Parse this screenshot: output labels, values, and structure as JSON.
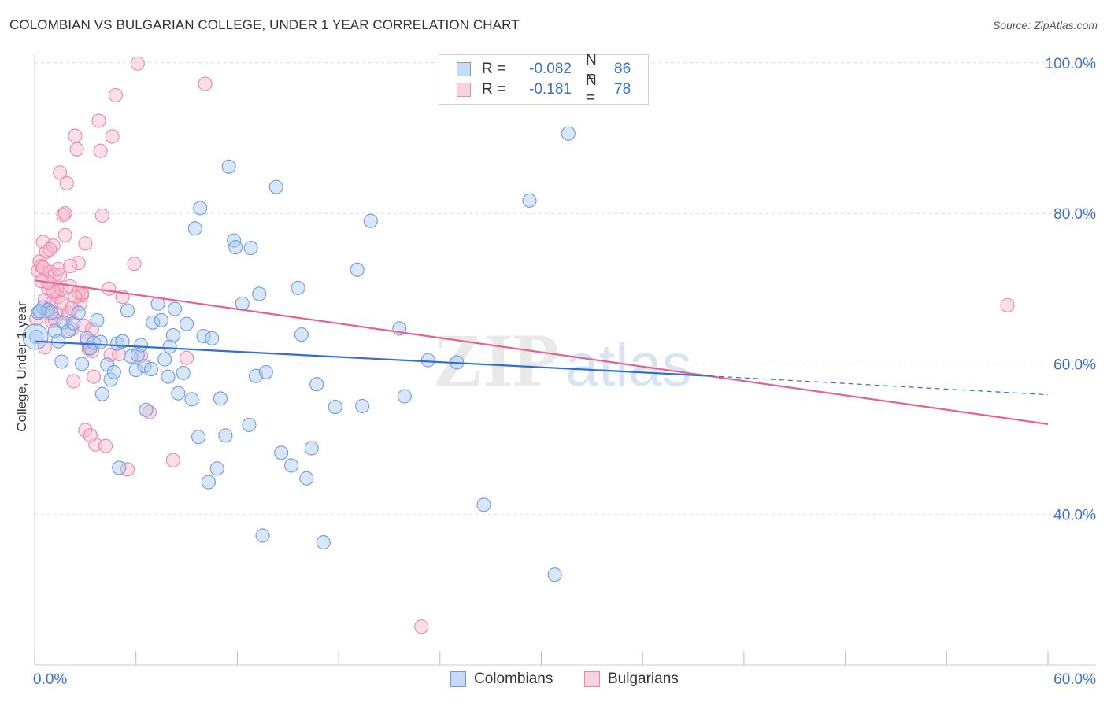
{
  "header": {
    "title": "COLOMBIAN VS BULGARIAN COLLEGE, UNDER 1 YEAR CORRELATION CHART",
    "source": "Source: ZipAtlas.com"
  },
  "legend": {
    "rows": [
      {
        "r_label": "R =",
        "r_value": "-0.082",
        "n_label": "N =",
        "n_value": "86"
      },
      {
        "r_label": "R =",
        "r_value": "-0.181",
        "n_label": "N =",
        "n_value": "78"
      }
    ]
  },
  "watermark": {
    "zip": "ZIP",
    "atlas": "atlas"
  },
  "colors": {
    "colombians_fill": "#a9c7ef",
    "colombians_stroke": "#6f9be0",
    "colombians_line": "#2f6fd0",
    "bulgarians_fill": "#f6b8cb",
    "bulgarians_stroke": "#ec88a8",
    "bulgarians_line": "#e8608f",
    "grid": "#dcdcdc",
    "axis_text": "#3b6fd0"
  },
  "chart_data": {
    "type": "scatter",
    "title": "COLOMBIAN VS BULGARIAN COLLEGE, UNDER 1 YEAR CORRELATION CHART",
    "xlabel": "",
    "ylabel": "College, Under 1 year",
    "xlim": [
      0,
      60
    ],
    "ylim": [
      20,
      100
    ],
    "x_tick_labels": [
      "0.0%",
      "60.0%"
    ],
    "y_ticks": [
      40,
      60,
      80,
      100
    ],
    "y_tick_labels": [
      "40.0%",
      "60.0%",
      "80.0%",
      "100.0%"
    ],
    "grid": true,
    "legend_position": "bottom",
    "series": [
      {
        "name": "Colombians",
        "r": -0.082,
        "n": 86,
        "trend": {
          "x0": 0,
          "y0": 63.0,
          "x1": 40,
          "y1": 58.4,
          "dash_to_x": 60,
          "dash_to_y": 55.9
        },
        "points": [
          [
            0.1,
            63.6
          ],
          [
            0.2,
            66.8
          ],
          [
            0.5,
            67.5
          ],
          [
            0.8,
            67.2
          ],
          [
            1.0,
            66.8
          ],
          [
            1.2,
            64.4
          ],
          [
            1.4,
            63.0
          ],
          [
            1.6,
            60.3
          ],
          [
            1.7,
            65.5
          ],
          [
            2.0,
            64.4
          ],
          [
            2.3,
            65.4
          ],
          [
            2.6,
            66.8
          ],
          [
            2.8,
            60.0
          ],
          [
            3.1,
            63.4
          ],
          [
            3.3,
            62.1
          ],
          [
            3.5,
            62.8
          ],
          [
            3.7,
            65.8
          ],
          [
            3.9,
            62.9
          ],
          [
            4.0,
            56.0
          ],
          [
            4.3,
            59.9
          ],
          [
            4.5,
            57.9
          ],
          [
            4.7,
            58.9
          ],
          [
            4.9,
            62.7
          ],
          [
            5.0,
            46.2
          ],
          [
            5.2,
            63.0
          ],
          [
            5.5,
            67.1
          ],
          [
            5.7,
            61.0
          ],
          [
            6.0,
            59.2
          ],
          [
            6.1,
            61.2
          ],
          [
            6.3,
            62.5
          ],
          [
            6.5,
            59.7
          ],
          [
            6.6,
            53.9
          ],
          [
            6.9,
            59.3
          ],
          [
            7.0,
            65.5
          ],
          [
            7.3,
            68.0
          ],
          [
            7.5,
            65.8
          ],
          [
            7.7,
            60.6
          ],
          [
            7.9,
            58.3
          ],
          [
            8.0,
            62.3
          ],
          [
            8.2,
            63.8
          ],
          [
            8.3,
            67.3
          ],
          [
            8.5,
            56.1
          ],
          [
            8.8,
            58.8
          ],
          [
            9.0,
            65.3
          ],
          [
            9.3,
            55.3
          ],
          [
            9.5,
            78.0
          ],
          [
            9.7,
            50.3
          ],
          [
            9.8,
            80.7
          ],
          [
            10.0,
            63.7
          ],
          [
            10.3,
            44.3
          ],
          [
            10.5,
            63.4
          ],
          [
            10.8,
            46.1
          ],
          [
            11.0,
            55.4
          ],
          [
            11.3,
            50.5
          ],
          [
            11.5,
            86.2
          ],
          [
            11.8,
            76.4
          ],
          [
            11.9,
            75.5
          ],
          [
            12.3,
            68.0
          ],
          [
            12.7,
            51.9
          ],
          [
            12.8,
            75.4
          ],
          [
            13.1,
            58.4
          ],
          [
            13.3,
            69.3
          ],
          [
            13.5,
            37.2
          ],
          [
            13.7,
            58.9
          ],
          [
            14.3,
            83.5
          ],
          [
            14.6,
            48.2
          ],
          [
            15.2,
            46.5
          ],
          [
            15.6,
            70.1
          ],
          [
            15.8,
            63.9
          ],
          [
            16.1,
            44.8
          ],
          [
            16.4,
            48.8
          ],
          [
            16.7,
            57.3
          ],
          [
            17.1,
            36.3
          ],
          [
            17.8,
            54.3
          ],
          [
            19.1,
            72.5
          ],
          [
            19.4,
            54.4
          ],
          [
            19.9,
            79.0
          ],
          [
            21.6,
            64.7
          ],
          [
            21.9,
            55.7
          ],
          [
            23.3,
            60.5
          ],
          [
            25.0,
            60.2
          ],
          [
            26.6,
            41.3
          ],
          [
            29.3,
            81.7
          ],
          [
            30.8,
            32.0
          ],
          [
            31.6,
            90.6
          ],
          [
            0.3,
            67.0
          ]
        ]
      },
      {
        "name": "Bulgarians",
        "r": -0.181,
        "n": 78,
        "trend": {
          "x0": 0,
          "y0": 71.1,
          "x1": 60,
          "y1": 52.0
        },
        "points": [
          [
            0.1,
            66.0
          ],
          [
            0.2,
            72.4
          ],
          [
            0.3,
            73.6
          ],
          [
            0.4,
            73.0
          ],
          [
            0.5,
            76.2
          ],
          [
            0.6,
            68.5
          ],
          [
            0.7,
            74.9
          ],
          [
            0.8,
            70.0
          ],
          [
            0.9,
            72.2
          ],
          [
            1.0,
            65.7
          ],
          [
            1.1,
            75.7
          ],
          [
            1.2,
            71.8
          ],
          [
            1.3,
            69.6
          ],
          [
            1.4,
            68.9
          ],
          [
            1.5,
            85.4
          ],
          [
            1.6,
            69.9
          ],
          [
            1.7,
            79.8
          ],
          [
            1.8,
            77.1
          ],
          [
            1.9,
            84.0
          ],
          [
            2.0,
            66.5
          ],
          [
            2.1,
            70.3
          ],
          [
            2.2,
            64.6
          ],
          [
            2.3,
            57.7
          ],
          [
            2.4,
            90.3
          ],
          [
            2.5,
            88.5
          ],
          [
            2.6,
            73.4
          ],
          [
            2.7,
            68.0
          ],
          [
            2.8,
            69.1
          ],
          [
            2.9,
            65.1
          ],
          [
            3.0,
            76.0
          ],
          [
            3.2,
            62.0
          ],
          [
            3.4,
            61.7
          ],
          [
            3.5,
            58.3
          ],
          [
            3.6,
            49.3
          ],
          [
            3.8,
            92.3
          ],
          [
            3.9,
            88.3
          ],
          [
            4.0,
            79.7
          ],
          [
            4.2,
            49.1
          ],
          [
            4.4,
            70.0
          ],
          [
            4.6,
            90.2
          ],
          [
            4.8,
            95.7
          ],
          [
            5.2,
            68.9
          ],
          [
            5.5,
            46.0
          ],
          [
            5.9,
            73.3
          ],
          [
            6.1,
            99.9
          ],
          [
            6.3,
            61.1
          ],
          [
            6.8,
            53.6
          ],
          [
            8.2,
            47.2
          ],
          [
            9.0,
            60.8
          ],
          [
            10.1,
            97.2
          ],
          [
            1.0,
            68.0
          ],
          [
            0.5,
            72.8
          ],
          [
            1.8,
            80.0
          ],
          [
            3.0,
            51.2
          ],
          [
            3.3,
            50.5
          ],
          [
            0.9,
            75.2
          ],
          [
            2.1,
            73.0
          ],
          [
            1.3,
            66.7
          ],
          [
            0.6,
            62.2
          ],
          [
            1.5,
            71.8
          ],
          [
            2.6,
            69.5
          ],
          [
            3.4,
            64.6
          ],
          [
            1.1,
            69.6
          ],
          [
            2.8,
            69.4
          ],
          [
            0.8,
            70.8
          ],
          [
            4.5,
            61.2
          ],
          [
            5.0,
            61.3
          ],
          [
            22.9,
            25.1
          ],
          [
            57.6,
            67.8
          ],
          [
            2.0,
            66.8
          ],
          [
            1.6,
            68.1
          ],
          [
            0.4,
            71.0
          ],
          [
            3.1,
            63.0
          ],
          [
            1.2,
            65.9
          ],
          [
            2.4,
            68.9
          ],
          [
            0.7,
            67.0
          ],
          [
            1.4,
            72.6
          ],
          [
            2.2,
            67.4
          ]
        ]
      }
    ]
  },
  "bottom_legend": {
    "colombians": "Colombians",
    "bulgarians": "Bulgarians"
  }
}
